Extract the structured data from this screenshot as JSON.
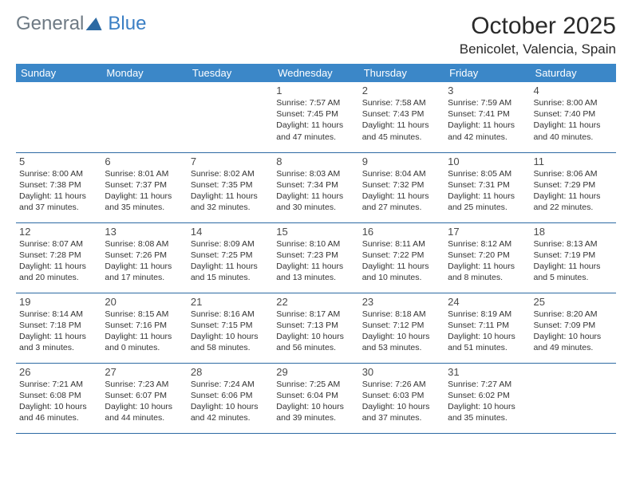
{
  "logo": {
    "part1": "General",
    "part2": "Blue"
  },
  "title": "October 2025",
  "location": "Benicolet, Valencia, Spain",
  "day_headers": [
    "Sunday",
    "Monday",
    "Tuesday",
    "Wednesday",
    "Thursday",
    "Friday",
    "Saturday"
  ],
  "colors": {
    "header_bg": "#3b87c8",
    "header_text": "#ffffff",
    "row_border": "#2d6aa3",
    "logo_gray": "#6e7a84",
    "logo_blue": "#3b7fc4"
  },
  "weeks": [
    [
      {
        "n": "",
        "sr": "",
        "ss": "",
        "dl": ""
      },
      {
        "n": "",
        "sr": "",
        "ss": "",
        "dl": ""
      },
      {
        "n": "",
        "sr": "",
        "ss": "",
        "dl": ""
      },
      {
        "n": "1",
        "sr": "7:57 AM",
        "ss": "7:45 PM",
        "dl": "11 hours and 47 minutes."
      },
      {
        "n": "2",
        "sr": "7:58 AM",
        "ss": "7:43 PM",
        "dl": "11 hours and 45 minutes."
      },
      {
        "n": "3",
        "sr": "7:59 AM",
        "ss": "7:41 PM",
        "dl": "11 hours and 42 minutes."
      },
      {
        "n": "4",
        "sr": "8:00 AM",
        "ss": "7:40 PM",
        "dl": "11 hours and 40 minutes."
      }
    ],
    [
      {
        "n": "5",
        "sr": "8:00 AM",
        "ss": "7:38 PM",
        "dl": "11 hours and 37 minutes."
      },
      {
        "n": "6",
        "sr": "8:01 AM",
        "ss": "7:37 PM",
        "dl": "11 hours and 35 minutes."
      },
      {
        "n": "7",
        "sr": "8:02 AM",
        "ss": "7:35 PM",
        "dl": "11 hours and 32 minutes."
      },
      {
        "n": "8",
        "sr": "8:03 AM",
        "ss": "7:34 PM",
        "dl": "11 hours and 30 minutes."
      },
      {
        "n": "9",
        "sr": "8:04 AM",
        "ss": "7:32 PM",
        "dl": "11 hours and 27 minutes."
      },
      {
        "n": "10",
        "sr": "8:05 AM",
        "ss": "7:31 PM",
        "dl": "11 hours and 25 minutes."
      },
      {
        "n": "11",
        "sr": "8:06 AM",
        "ss": "7:29 PM",
        "dl": "11 hours and 22 minutes."
      }
    ],
    [
      {
        "n": "12",
        "sr": "8:07 AM",
        "ss": "7:28 PM",
        "dl": "11 hours and 20 minutes."
      },
      {
        "n": "13",
        "sr": "8:08 AM",
        "ss": "7:26 PM",
        "dl": "11 hours and 17 minutes."
      },
      {
        "n": "14",
        "sr": "8:09 AM",
        "ss": "7:25 PM",
        "dl": "11 hours and 15 minutes."
      },
      {
        "n": "15",
        "sr": "8:10 AM",
        "ss": "7:23 PM",
        "dl": "11 hours and 13 minutes."
      },
      {
        "n": "16",
        "sr": "8:11 AM",
        "ss": "7:22 PM",
        "dl": "11 hours and 10 minutes."
      },
      {
        "n": "17",
        "sr": "8:12 AM",
        "ss": "7:20 PM",
        "dl": "11 hours and 8 minutes."
      },
      {
        "n": "18",
        "sr": "8:13 AM",
        "ss": "7:19 PM",
        "dl": "11 hours and 5 minutes."
      }
    ],
    [
      {
        "n": "19",
        "sr": "8:14 AM",
        "ss": "7:18 PM",
        "dl": "11 hours and 3 minutes."
      },
      {
        "n": "20",
        "sr": "8:15 AM",
        "ss": "7:16 PM",
        "dl": "11 hours and 0 minutes."
      },
      {
        "n": "21",
        "sr": "8:16 AM",
        "ss": "7:15 PM",
        "dl": "10 hours and 58 minutes."
      },
      {
        "n": "22",
        "sr": "8:17 AM",
        "ss": "7:13 PM",
        "dl": "10 hours and 56 minutes."
      },
      {
        "n": "23",
        "sr": "8:18 AM",
        "ss": "7:12 PM",
        "dl": "10 hours and 53 minutes."
      },
      {
        "n": "24",
        "sr": "8:19 AM",
        "ss": "7:11 PM",
        "dl": "10 hours and 51 minutes."
      },
      {
        "n": "25",
        "sr": "8:20 AM",
        "ss": "7:09 PM",
        "dl": "10 hours and 49 minutes."
      }
    ],
    [
      {
        "n": "26",
        "sr": "7:21 AM",
        "ss": "6:08 PM",
        "dl": "10 hours and 46 minutes."
      },
      {
        "n": "27",
        "sr": "7:23 AM",
        "ss": "6:07 PM",
        "dl": "10 hours and 44 minutes."
      },
      {
        "n": "28",
        "sr": "7:24 AM",
        "ss": "6:06 PM",
        "dl": "10 hours and 42 minutes."
      },
      {
        "n": "29",
        "sr": "7:25 AM",
        "ss": "6:04 PM",
        "dl": "10 hours and 39 minutes."
      },
      {
        "n": "30",
        "sr": "7:26 AM",
        "ss": "6:03 PM",
        "dl": "10 hours and 37 minutes."
      },
      {
        "n": "31",
        "sr": "7:27 AM",
        "ss": "6:02 PM",
        "dl": "10 hours and 35 minutes."
      },
      {
        "n": "",
        "sr": "",
        "ss": "",
        "dl": ""
      }
    ]
  ],
  "labels": {
    "sunrise": "Sunrise: ",
    "sunset": "Sunset: ",
    "daylight": "Daylight: "
  }
}
